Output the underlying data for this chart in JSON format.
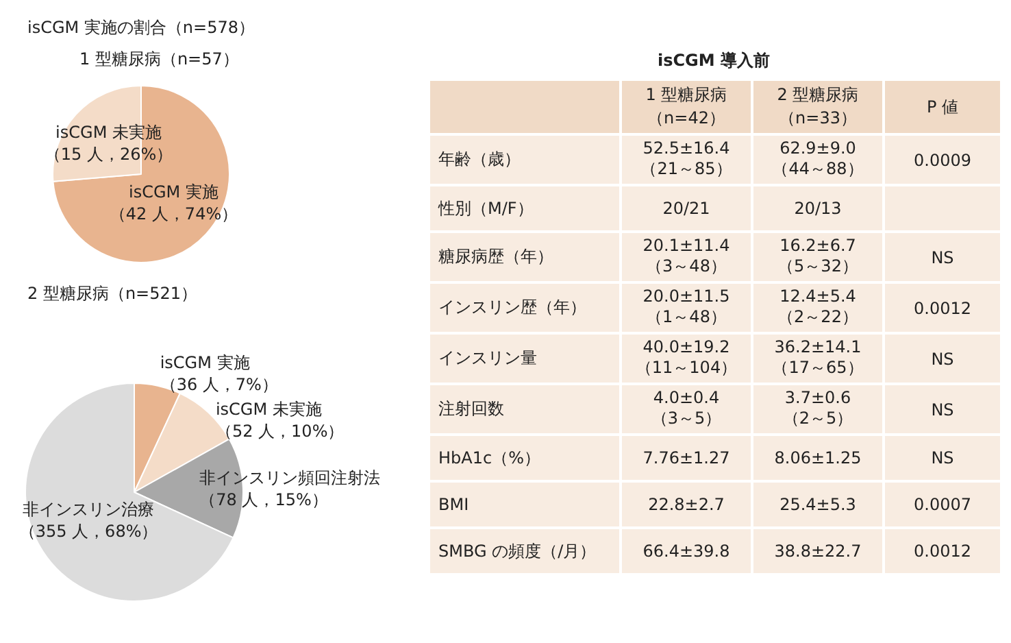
{
  "chart_data": [
    {
      "type": "pie",
      "title": "isCGM 実施の割合（n=578）",
      "subtitle": "1 型糖尿病（n=57）",
      "categories": [
        "isCGM 実施",
        "isCGM 未実施"
      ],
      "values": [
        42,
        15
      ],
      "value_labels": [
        "（42 人，74%）",
        "（15 人，26%）"
      ],
      "colors": [
        "#e8b48f",
        "#f4dcc8"
      ],
      "legend": false
    },
    {
      "type": "pie",
      "title": "2 型糖尿病（n=521）",
      "categories": [
        "isCGM 実施",
        "isCGM 未実施",
        "非インスリン頻回注射法",
        "非インスリン治療"
      ],
      "values": [
        36,
        52,
        78,
        355
      ],
      "value_labels": [
        "（36 人，7%）",
        "（52 人，10%）",
        "（78 人，15%）",
        "（355 人，68%）"
      ],
      "colors": [
        "#e8b48f",
        "#f4dcc8",
        "#a8a8a8",
        "#dcdcdc"
      ],
      "legend": false
    },
    {
      "type": "other",
      "title": "isCGM 導入前",
      "categories": [
        "1 型糖尿病（n=42）",
        "2 型糖尿病（n=33）",
        "P 値"
      ],
      "y_categories": [
        "年齢（歳）",
        "性別（M/F）",
        "糖尿病歴（年）",
        "インスリン歴（年）",
        "インスリン量",
        "注射回数",
        "HbA1c（%）",
        "BMI",
        "SMBG の頻度（/月）"
      ],
      "cell_labels": [
        [
          "52.5±16.4\n（21～85）",
          "62.9±9.0\n（44～88）",
          "0.0009"
        ],
        [
          "20/21",
          "20/13",
          null
        ],
        [
          "20.1±11.4\n（3～48）",
          "16.2±6.7\n（5～32）",
          "NS"
        ],
        [
          "20.0±11.5\n（1～48）",
          "12.4±5.4\n（2～22）",
          "0.0012"
        ],
        [
          "40.0±19.2\n（11～104）",
          "36.2±14.1\n（17～65）",
          "NS"
        ],
        [
          "4.0±0.4\n（3～5）",
          "3.7±0.6\n（2～5）",
          "NS"
        ],
        [
          "7.76±1.27",
          "8.06±1.25",
          "NS"
        ],
        [
          "22.8±2.7",
          "25.4±5.3",
          "0.0007"
        ],
        [
          "66.4±39.8",
          "38.8±22.7",
          "0.0012"
        ]
      ]
    }
  ]
}
